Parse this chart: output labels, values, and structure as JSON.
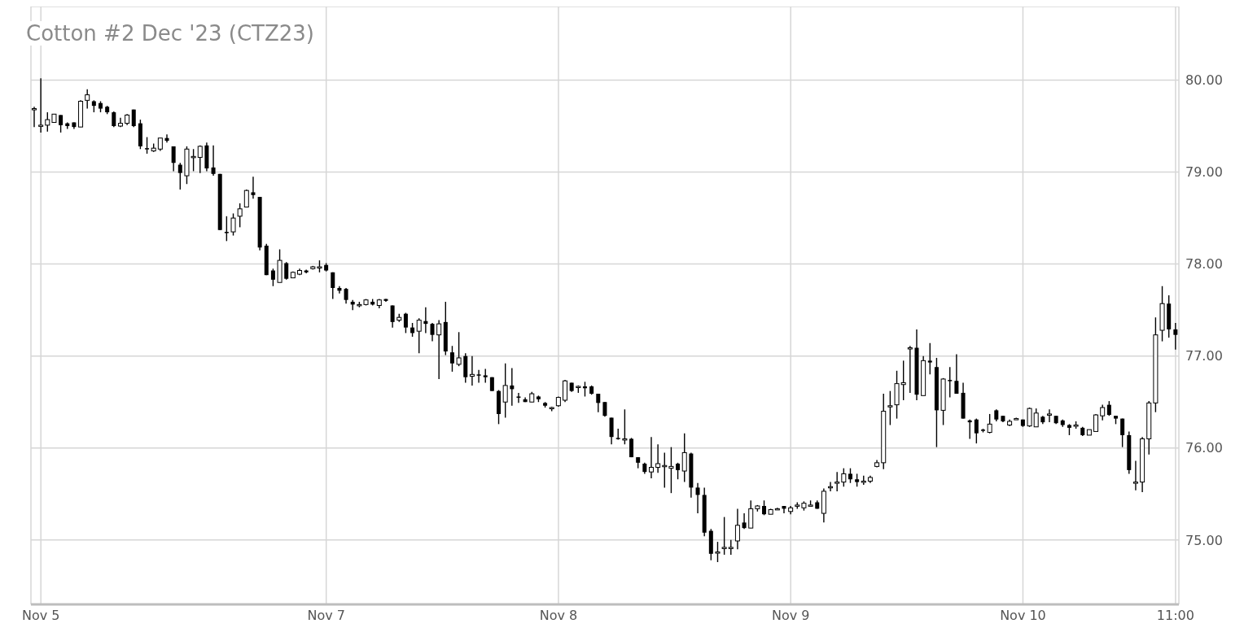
{
  "chart_data": {
    "type": "candlestick",
    "title": "Cotton #2 Dec '23 (CTZ23)",
    "categories": [
      null,
      "Nov 5",
      null,
      null,
      null,
      null,
      null,
      null,
      null,
      null,
      null,
      null,
      null,
      null,
      null,
      null,
      null,
      null,
      null,
      null,
      null,
      null,
      null,
      null,
      null,
      null,
      null,
      null,
      null,
      null,
      null,
      null,
      null,
      null,
      null,
      null,
      null,
      null,
      null,
      null,
      null,
      null,
      null,
      null,
      "Nov 7",
      null,
      null,
      null,
      null,
      null,
      null,
      null,
      null,
      null,
      null,
      null,
      null,
      null,
      null,
      null,
      null,
      null,
      null,
      null,
      null,
      null,
      null,
      null,
      null,
      null,
      null,
      null,
      null,
      null,
      null,
      null,
      null,
      null,
      null,
      "Nov 8",
      null,
      null,
      null,
      null,
      null,
      null,
      null,
      null,
      null,
      null,
      null,
      null,
      null,
      null,
      null,
      null,
      null,
      null,
      null,
      null,
      null,
      null,
      null,
      null,
      null,
      null,
      null,
      null,
      null,
      null,
      null,
      null,
      null,
      null,
      "Nov 9",
      null,
      null,
      null,
      null,
      null,
      null,
      null,
      null,
      null,
      null,
      null,
      null,
      null,
      null,
      null,
      null,
      null,
      null,
      null,
      null,
      null,
      null,
      null,
      null,
      null,
      null,
      null,
      null,
      null,
      null,
      null,
      null,
      null,
      null,
      "Nov 10",
      null,
      null,
      null,
      null,
      null,
      null,
      null,
      null,
      null,
      null,
      null,
      null,
      null,
      null,
      null,
      null,
      null,
      null,
      null,
      null,
      null,
      null,
      "11:00"
    ],
    "ohlc": [
      [
        79.68,
        79.71,
        79.49,
        79.69
      ],
      [
        79.5,
        80.02,
        79.43,
        79.51
      ],
      [
        79.51,
        79.65,
        79.44,
        79.57
      ],
      [
        79.54,
        79.63,
        79.54,
        79.63
      ],
      [
        79.62,
        79.62,
        79.43,
        79.51
      ],
      [
        79.53,
        79.54,
        79.47,
        79.5
      ],
      [
        79.54,
        79.54,
        79.47,
        79.49
      ],
      [
        79.49,
        79.78,
        79.49,
        79.77
      ],
      [
        79.78,
        79.9,
        79.69,
        79.84
      ],
      [
        79.77,
        79.78,
        79.65,
        79.72
      ],
      [
        79.75,
        79.77,
        79.65,
        79.69
      ],
      [
        79.71,
        79.72,
        79.63,
        79.65
      ],
      [
        79.65,
        79.66,
        79.49,
        79.5
      ],
      [
        79.5,
        79.59,
        79.49,
        79.53
      ],
      [
        79.53,
        79.63,
        79.51,
        79.62
      ],
      [
        79.68,
        79.68,
        79.49,
        79.5
      ],
      [
        79.53,
        79.57,
        79.25,
        79.28
      ],
      [
        79.26,
        79.38,
        79.2,
        79.25
      ],
      [
        79.23,
        79.31,
        79.22,
        79.26
      ],
      [
        79.25,
        79.37,
        79.23,
        79.37
      ],
      [
        79.37,
        79.41,
        79.32,
        79.34
      ],
      [
        79.28,
        79.28,
        79.01,
        79.1
      ],
      [
        79.08,
        79.1,
        78.81,
        78.99
      ],
      [
        78.96,
        79.28,
        78.87,
        79.25
      ],
      [
        79.17,
        79.25,
        79.01,
        79.17
      ],
      [
        79.16,
        79.29,
        78.99,
        79.28
      ],
      [
        79.29,
        79.32,
        79.01,
        79.04
      ],
      [
        79.05,
        79.29,
        78.96,
        78.98
      ],
      [
        78.98,
        78.98,
        78.37,
        78.37
      ],
      [
        78.35,
        78.52,
        78.25,
        78.34
      ],
      [
        78.35,
        78.55,
        78.31,
        78.5
      ],
      [
        78.52,
        78.66,
        78.4,
        78.6
      ],
      [
        78.62,
        78.81,
        78.62,
        78.8
      ],
      [
        78.78,
        78.95,
        78.71,
        78.75
      ],
      [
        78.73,
        78.73,
        78.15,
        78.18
      ],
      [
        78.2,
        78.22,
        77.88,
        77.88
      ],
      [
        77.93,
        77.95,
        77.76,
        77.83
      ],
      [
        77.8,
        78.16,
        77.8,
        78.04
      ],
      [
        78.01,
        78.02,
        77.83,
        77.84
      ],
      [
        77.85,
        77.92,
        77.85,
        77.91
      ],
      [
        77.89,
        77.95,
        77.88,
        77.93
      ],
      [
        77.93,
        77.94,
        77.9,
        77.91
      ],
      [
        77.95,
        77.98,
        77.94,
        77.97
      ],
      [
        77.96,
        78.04,
        77.91,
        77.97
      ],
      [
        77.99,
        78.01,
        77.92,
        77.93
      ],
      [
        77.91,
        77.91,
        77.62,
        77.74
      ],
      [
        77.74,
        77.76,
        77.68,
        77.71
      ],
      [
        77.73,
        77.74,
        77.57,
        77.61
      ],
      [
        77.59,
        77.61,
        77.5,
        77.56
      ],
      [
        77.56,
        77.59,
        77.53,
        77.56
      ],
      [
        77.56,
        77.62,
        77.55,
        77.61
      ],
      [
        77.59,
        77.62,
        77.55,
        77.56
      ],
      [
        77.55,
        77.62,
        77.52,
        77.61
      ],
      [
        77.62,
        77.62,
        77.59,
        77.6
      ],
      [
        77.55,
        77.55,
        77.31,
        77.37
      ],
      [
        77.39,
        77.46,
        77.37,
        77.42
      ],
      [
        77.46,
        77.47,
        77.25,
        77.31
      ],
      [
        77.31,
        77.36,
        77.21,
        77.25
      ],
      [
        77.27,
        77.41,
        77.03,
        77.39
      ],
      [
        77.38,
        77.53,
        77.25,
        77.35
      ],
      [
        77.35,
        77.36,
        77.16,
        77.23
      ],
      [
        77.23,
        77.39,
        76.75,
        77.35
      ],
      [
        77.37,
        77.59,
        77.01,
        77.05
      ],
      [
        77.04,
        77.11,
        76.83,
        76.92
      ],
      [
        76.91,
        77.26,
        76.89,
        76.98
      ],
      [
        77.0,
        77.03,
        76.71,
        76.77
      ],
      [
        76.78,
        77.0,
        76.68,
        76.8
      ],
      [
        76.8,
        76.85,
        76.71,
        76.79
      ],
      [
        76.79,
        76.86,
        76.71,
        76.77
      ],
      [
        76.77,
        76.77,
        76.62,
        76.62
      ],
      [
        76.62,
        76.63,
        76.26,
        76.37
      ],
      [
        76.5,
        76.92,
        76.33,
        76.68
      ],
      [
        76.68,
        76.87,
        76.46,
        76.64
      ],
      [
        76.56,
        76.6,
        76.49,
        76.55
      ],
      [
        76.53,
        76.55,
        76.5,
        76.5
      ],
      [
        76.5,
        76.61,
        76.5,
        76.59
      ],
      [
        76.56,
        76.57,
        76.5,
        76.53
      ],
      [
        76.49,
        76.5,
        76.44,
        76.46
      ],
      [
        76.43,
        76.45,
        76.4,
        76.44
      ],
      [
        76.46,
        76.56,
        76.45,
        76.55
      ],
      [
        76.52,
        76.74,
        76.5,
        76.73
      ],
      [
        76.71,
        76.71,
        76.61,
        76.62
      ],
      [
        76.67,
        76.68,
        76.6,
        76.67
      ],
      [
        76.67,
        76.72,
        76.56,
        76.65
      ],
      [
        76.67,
        76.68,
        76.58,
        76.59
      ],
      [
        76.59,
        76.59,
        76.39,
        76.49
      ],
      [
        76.5,
        76.5,
        76.34,
        76.35
      ],
      [
        76.33,
        76.33,
        76.04,
        76.12
      ],
      [
        76.11,
        76.21,
        76.09,
        76.1
      ],
      [
        76.1,
        76.42,
        76.04,
        76.1
      ],
      [
        76.1,
        76.11,
        75.9,
        75.9
      ],
      [
        75.9,
        75.9,
        75.78,
        75.84
      ],
      [
        75.83,
        75.84,
        75.72,
        75.74
      ],
      [
        75.74,
        76.12,
        75.67,
        75.79
      ],
      [
        75.79,
        76.04,
        75.73,
        75.83
      ],
      [
        75.81,
        75.95,
        75.57,
        75.81
      ],
      [
        75.78,
        76.01,
        75.51,
        75.8
      ],
      [
        75.83,
        75.84,
        75.66,
        75.76
      ],
      [
        75.75,
        76.16,
        75.63,
        75.95
      ],
      [
        75.94,
        75.95,
        75.46,
        75.57
      ],
      [
        75.57,
        75.62,
        75.29,
        75.49
      ],
      [
        75.49,
        75.57,
        75.04,
        75.08
      ],
      [
        75.1,
        75.12,
        74.78,
        74.85
      ],
      [
        74.87,
        74.98,
        74.76,
        74.87
      ],
      [
        74.92,
        75.25,
        74.84,
        74.92
      ],
      [
        74.92,
        75.0,
        74.84,
        74.92
      ],
      [
        74.99,
        75.34,
        74.9,
        75.16
      ],
      [
        75.19,
        75.29,
        75.12,
        75.13
      ],
      [
        75.13,
        75.43,
        75.13,
        75.34
      ],
      [
        75.34,
        75.38,
        75.31,
        75.37
      ],
      [
        75.37,
        75.43,
        75.27,
        75.28
      ],
      [
        75.28,
        75.34,
        75.28,
        75.33
      ],
      [
        75.34,
        75.35,
        75.33,
        75.34
      ],
      [
        75.37,
        75.37,
        75.29,
        75.34
      ],
      [
        75.31,
        75.37,
        75.28,
        75.35
      ],
      [
        75.37,
        75.41,
        75.34,
        75.38
      ],
      [
        75.35,
        75.42,
        75.32,
        75.4
      ],
      [
        75.38,
        75.43,
        75.37,
        75.38
      ],
      [
        75.41,
        75.43,
        75.34,
        75.34
      ],
      [
        75.29,
        75.56,
        75.19,
        75.53
      ],
      [
        75.57,
        75.63,
        75.53,
        75.58
      ],
      [
        75.63,
        75.74,
        75.53,
        75.63
      ],
      [
        75.63,
        75.78,
        75.58,
        75.72
      ],
      [
        75.72,
        75.78,
        75.62,
        75.66
      ],
      [
        75.66,
        75.72,
        75.58,
        75.63
      ],
      [
        75.63,
        75.7,
        75.6,
        75.64
      ],
      [
        75.64,
        75.7,
        75.62,
        75.68
      ],
      [
        75.8,
        75.87,
        75.79,
        75.84
      ],
      [
        75.84,
        76.59,
        75.77,
        76.4
      ],
      [
        76.45,
        76.62,
        76.25,
        76.46
      ],
      [
        76.47,
        76.84,
        76.32,
        76.7
      ],
      [
        76.69,
        76.95,
        76.52,
        76.71
      ],
      [
        77.08,
        77.11,
        76.6,
        77.09
      ],
      [
        77.09,
        77.29,
        76.52,
        76.58
      ],
      [
        76.57,
        77.0,
        76.57,
        76.95
      ],
      [
        76.95,
        77.14,
        76.8,
        76.93
      ],
      [
        76.88,
        76.98,
        76.01,
        76.41
      ],
      [
        76.41,
        76.76,
        76.25,
        76.75
      ],
      [
        76.74,
        76.88,
        76.55,
        76.73
      ],
      [
        76.73,
        77.02,
        76.59,
        76.59
      ],
      [
        76.6,
        76.71,
        76.32,
        76.32
      ],
      [
        76.3,
        76.31,
        76.1,
        76.28
      ],
      [
        76.31,
        76.32,
        76.05,
        76.16
      ],
      [
        76.2,
        76.21,
        76.17,
        76.19
      ],
      [
        76.17,
        76.37,
        76.16,
        76.26
      ],
      [
        76.41,
        76.42,
        76.29,
        76.31
      ],
      [
        76.35,
        76.35,
        76.28,
        76.29
      ],
      [
        76.25,
        76.31,
        76.24,
        76.29
      ],
      [
        76.32,
        76.33,
        76.31,
        76.32
      ],
      [
        76.31,
        76.31,
        76.23,
        76.24
      ],
      [
        76.24,
        76.44,
        76.23,
        76.43
      ],
      [
        76.23,
        76.43,
        76.23,
        76.38
      ],
      [
        76.34,
        76.35,
        76.26,
        76.28
      ],
      [
        76.37,
        76.42,
        76.28,
        76.37
      ],
      [
        76.35,
        76.35,
        76.26,
        76.27
      ],
      [
        76.3,
        76.31,
        76.23,
        76.25
      ],
      [
        76.25,
        76.26,
        76.14,
        76.22
      ],
      [
        76.25,
        76.29,
        76.21,
        76.25
      ],
      [
        76.22,
        76.23,
        76.13,
        76.14
      ],
      [
        76.14,
        76.2,
        76.14,
        76.2
      ],
      [
        76.18,
        76.37,
        76.18,
        76.36
      ],
      [
        76.35,
        76.47,
        76.3,
        76.44
      ],
      [
        76.47,
        76.51,
        76.35,
        76.36
      ],
      [
        76.35,
        76.35,
        76.26,
        76.32
      ],
      [
        76.32,
        76.32,
        76.01,
        76.14
      ],
      [
        76.14,
        76.18,
        75.72,
        75.76
      ],
      [
        75.63,
        75.86,
        75.54,
        75.63
      ],
      [
        75.63,
        76.12,
        75.52,
        76.1
      ],
      [
        76.1,
        76.51,
        75.93,
        76.49
      ],
      [
        76.49,
        77.42,
        76.39,
        77.23
      ],
      [
        77.28,
        77.76,
        77.16,
        77.57
      ],
      [
        77.57,
        77.66,
        77.2,
        77.29
      ],
      [
        77.29,
        77.36,
        77.07,
        77.23
      ]
    ],
    "color": "#000000",
    "ylim": [
      74.3,
      80.8
    ],
    "yticks": [
      {
        "value": 75,
        "label": "75.00"
      },
      {
        "value": 76,
        "label": "76.00"
      },
      {
        "value": 77,
        "label": "77.00"
      },
      {
        "value": 78,
        "label": "78.00"
      },
      {
        "value": 79,
        "label": "79.00"
      },
      {
        "value": 80,
        "label": "80.00"
      }
    ],
    "grid": true
  }
}
